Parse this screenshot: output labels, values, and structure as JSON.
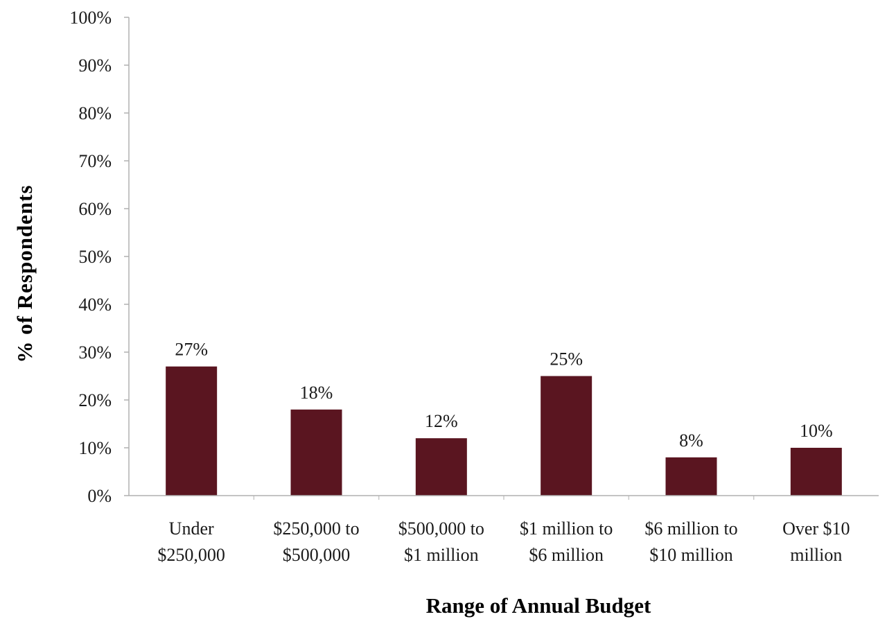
{
  "chart_data": {
    "type": "bar",
    "categories": [
      [
        "Under",
        "$250,000"
      ],
      [
        "$250,000 to",
        "$500,000"
      ],
      [
        "$500,000 to",
        "$1 million"
      ],
      [
        "$1 million to",
        "$6 million"
      ],
      [
        "$6 million to",
        "$10 million"
      ],
      [
        "Over $10",
        "million"
      ]
    ],
    "values": [
      27,
      18,
      12,
      25,
      8,
      10
    ],
    "value_labels": [
      "27%",
      "18%",
      "12%",
      "25%",
      "8%",
      "10%"
    ],
    "xlabel": "Range of Annual Budget",
    "ylabel": "% of Respondents",
    "ylim": [
      0,
      100
    ],
    "yticks": [
      0,
      10,
      20,
      30,
      40,
      50,
      60,
      70,
      80,
      90,
      100
    ],
    "ytick_labels": [
      "0%",
      "10%",
      "20%",
      "30%",
      "40%",
      "50%",
      "60%",
      "70%",
      "80%",
      "90%",
      "100%"
    ],
    "bar_color": "#5a1520",
    "grid": false,
    "legend": "none"
  }
}
